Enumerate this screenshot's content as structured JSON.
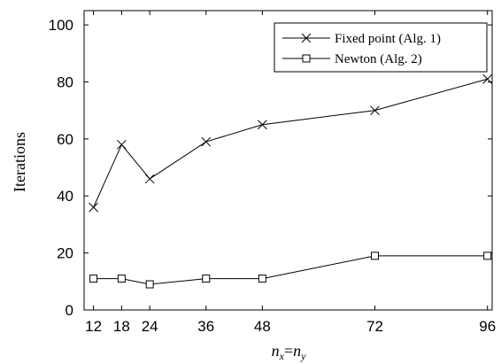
{
  "chart_data": {
    "type": "line",
    "title": "",
    "xlabel": "n_x = n_y",
    "xlabel_parts": {
      "left_base": "n",
      "left_sub": "x",
      "equals": "=",
      "right_base": "n",
      "right_sub": "y"
    },
    "ylabel": "Iterations",
    "xlim": [
      10,
      97
    ],
    "ylim": [
      0,
      105
    ],
    "xticks": [
      12,
      18,
      24,
      36,
      48,
      72,
      96
    ],
    "xtick_labels": [
      "12",
      "18",
      "24",
      "36",
      "48",
      "72",
      "96"
    ],
    "yticks": [
      0,
      20,
      40,
      60,
      80,
      100
    ],
    "ytick_labels": [
      "0",
      "20",
      "40",
      "60",
      "80",
      "100"
    ],
    "grid": false,
    "legend_position": "top-right",
    "x": [
      12,
      18,
      24,
      36,
      48,
      72,
      96
    ],
    "series": [
      {
        "name": "Fixed point (Alg. 1)",
        "marker": "x",
        "color": "#000000",
        "values": [
          36,
          58,
          46,
          59,
          65,
          70,
          81
        ]
      },
      {
        "name": "Newton (Alg. 2)",
        "marker": "square",
        "color": "#000000",
        "values": [
          11,
          11,
          9,
          11,
          11,
          19,
          19
        ]
      }
    ]
  }
}
